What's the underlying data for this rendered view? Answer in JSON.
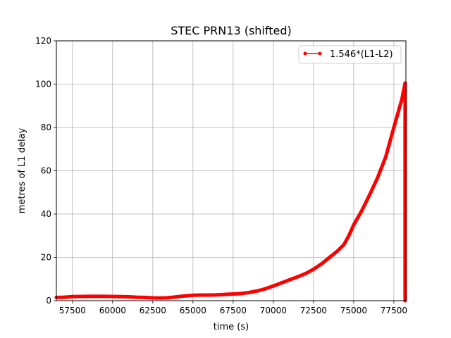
{
  "chart_data": {
    "type": "line",
    "title": "STEC PRN13 (shifted)",
    "xlabel": "time (s)",
    "ylabel": "metres of L1 delay",
    "xlim": [
      56500,
      78250
    ],
    "ylim": [
      0,
      120
    ],
    "grid": true,
    "legend_position": "top-right",
    "x_ticks": [
      57500,
      60000,
      62500,
      65000,
      67500,
      70000,
      72500,
      75000,
      77500
    ],
    "x_tick_labels": [
      "57500",
      "60000",
      "62500",
      "65000",
      "67500",
      "70000",
      "72500",
      "75000",
      "77500"
    ],
    "y_ticks": [
      0,
      20,
      40,
      60,
      80,
      100,
      120
    ],
    "y_tick_labels": [
      "0",
      "20",
      "40",
      "60",
      "80",
      "100",
      "120"
    ],
    "series": [
      {
        "name": "1.546*(L1-L2)",
        "color": "#ff0000",
        "marker": "circle",
        "points": [
          [
            56500,
            1.5
          ],
          [
            57000,
            1.6
          ],
          [
            57500,
            1.9
          ],
          [
            58500,
            2.0
          ],
          [
            59500,
            2.0
          ],
          [
            60500,
            1.9
          ],
          [
            61000,
            1.8
          ],
          [
            61500,
            1.6
          ],
          [
            62000,
            1.5
          ],
          [
            62500,
            1.3
          ],
          [
            63000,
            1.2
          ],
          [
            63500,
            1.4
          ],
          [
            64000,
            1.8
          ],
          [
            64500,
            2.2
          ],
          [
            65000,
            2.5
          ],
          [
            65500,
            2.6
          ],
          [
            66000,
            2.6
          ],
          [
            66500,
            2.7
          ],
          [
            67000,
            2.9
          ],
          [
            67500,
            3.1
          ],
          [
            68000,
            3.3
          ],
          [
            68500,
            3.8
          ],
          [
            69000,
            4.5
          ],
          [
            69500,
            5.5
          ],
          [
            70000,
            6.8
          ],
          [
            70500,
            8.2
          ],
          [
            71000,
            9.6
          ],
          [
            71500,
            11.0
          ],
          [
            72000,
            12.5
          ],
          [
            72500,
            14.5
          ],
          [
            73000,
            17.0
          ],
          [
            73500,
            20.0
          ],
          [
            74000,
            23.0
          ],
          [
            74400,
            26.0
          ],
          [
            74700,
            30.0
          ],
          [
            75000,
            35.0
          ],
          [
            75500,
            41.5
          ],
          [
            76000,
            49.0
          ],
          [
            76500,
            57.0
          ],
          [
            77000,
            66.5
          ],
          [
            77500,
            80.0
          ],
          [
            78000,
            93.0
          ],
          [
            78200,
            100.5
          ],
          [
            78200,
            0
          ]
        ]
      }
    ]
  }
}
